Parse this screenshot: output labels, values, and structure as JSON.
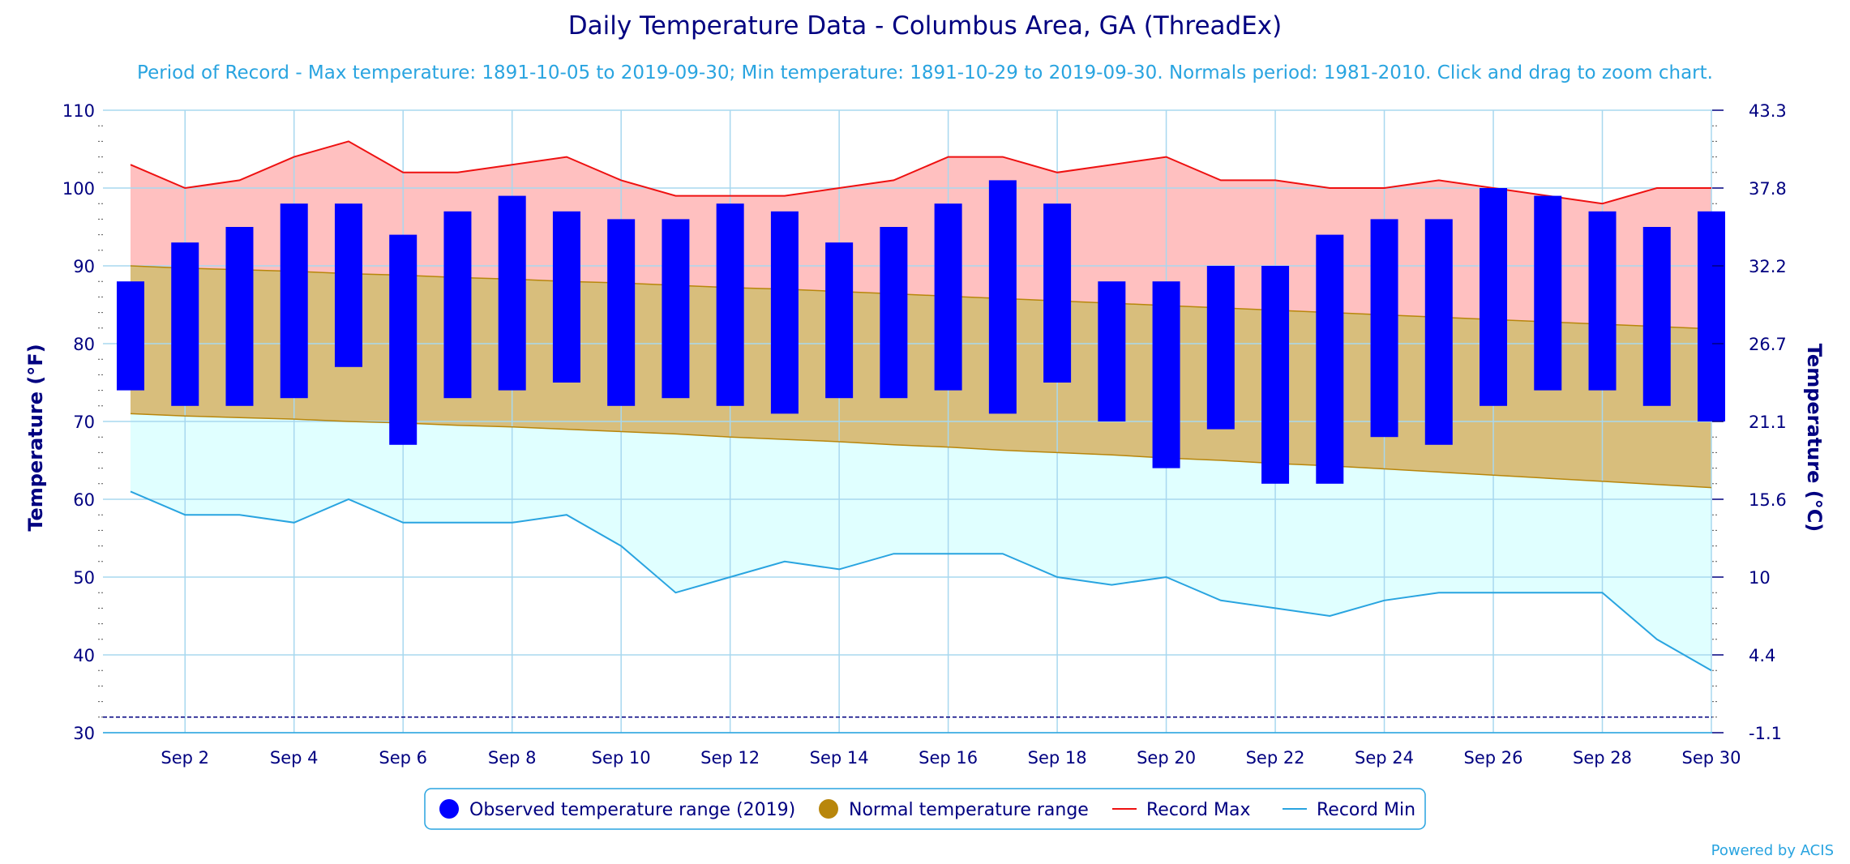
{
  "chart_data": {
    "type": "bar",
    "title": "Daily Temperature Data - Columbus Area, GA (ThreadEx)",
    "subtitle": "Period of Record - Max temperature: 1891-10-05 to 2019-09-30; Min temperature: 1891-10-29 to 2019-09-30. Normals period: 1981-2010. Click and drag to zoom chart.",
    "ylabel": "Temperature (°F)",
    "ylabel_right": "Temperature (°C)",
    "ylim": [
      30,
      110
    ],
    "yticks": [
      30,
      40,
      50,
      60,
      70,
      80,
      90,
      100,
      110
    ],
    "yticks_right": [
      "-1.1",
      "4.4",
      "10",
      "15.6",
      "21.1",
      "26.7",
      "32.2",
      "37.8",
      "43.3"
    ],
    "x": [
      1,
      2,
      3,
      4,
      5,
      6,
      7,
      8,
      9,
      10,
      11,
      12,
      13,
      14,
      15,
      16,
      17,
      18,
      19,
      20,
      21,
      22,
      23,
      24,
      25,
      26,
      27,
      28,
      29,
      30
    ],
    "xtick_days": [
      2,
      4,
      6,
      8,
      10,
      12,
      14,
      16,
      18,
      20,
      22,
      24,
      26,
      28,
      30
    ],
    "xtick_labels": [
      "Sep 2",
      "Sep 4",
      "Sep 6",
      "Sep 8",
      "Sep 10",
      "Sep 12",
      "Sep 14",
      "Sep 16",
      "Sep 18",
      "Sep 20",
      "Sep 22",
      "Sep 24",
      "Sep 26",
      "Sep 28",
      "Sep 30"
    ],
    "freeze_line": 32,
    "grid": true,
    "legend_position": "bottom-center",
    "colors": {
      "observed": "#0000ff",
      "normal_fill": "#d8be7c",
      "normal_line": "#b8860b",
      "normal_legend": "#b8860b",
      "record_max": "#ee1111",
      "record_max_fill": "#ffc0c0",
      "record_min": "#29a4e0",
      "record_min_fill": "#e0ffff",
      "freeze": "#000080",
      "grid": "#a8d8ef"
    },
    "series": [
      {
        "name": "Observed temperature range (2019)",
        "kind": "range_bar",
        "high": [
          88,
          93,
          95,
          98,
          98,
          94,
          97,
          99,
          97,
          96,
          96,
          98,
          97,
          93,
          95,
          98,
          101,
          98,
          88,
          88,
          90,
          90,
          94,
          96,
          96,
          100,
          99,
          97,
          95,
          97
        ],
        "low": [
          74,
          72,
          72,
          73,
          77,
          67,
          73,
          74,
          75,
          72,
          73,
          72,
          71,
          73,
          73,
          74,
          71,
          75,
          70,
          64,
          69,
          62,
          62,
          68,
          67,
          72,
          74,
          74,
          72,
          70
        ]
      },
      {
        "name": "Normal temperature range",
        "kind": "range_area",
        "high": [
          90.0,
          89.7,
          89.5,
          89.3,
          89.0,
          88.8,
          88.5,
          88.3,
          88.0,
          87.8,
          87.5,
          87.2,
          87.0,
          86.7,
          86.4,
          86.1,
          85.8,
          85.5,
          85.2,
          84.9,
          84.6,
          84.3,
          84.0,
          83.7,
          83.4,
          83.1,
          82.8,
          82.5,
          82.2,
          81.9
        ],
        "low": [
          71.0,
          70.7,
          70.5,
          70.3,
          70.0,
          69.8,
          69.5,
          69.3,
          69.0,
          68.7,
          68.4,
          68.0,
          67.7,
          67.4,
          67.0,
          66.7,
          66.3,
          66.0,
          65.7,
          65.3,
          65.0,
          64.6,
          64.3,
          63.9,
          63.5,
          63.1,
          62.7,
          62.3,
          61.9,
          61.5
        ]
      },
      {
        "name": "Record Max",
        "kind": "line",
        "values": [
          103,
          100,
          101,
          104,
          106,
          102,
          102,
          103,
          104,
          101,
          99,
          99,
          99,
          100,
          101,
          104,
          104,
          102,
          103,
          104,
          101,
          101,
          100,
          100,
          101,
          100,
          99,
          98,
          100,
          100
        ]
      },
      {
        "name": "Record Min",
        "kind": "line",
        "values": [
          61,
          58,
          58,
          57,
          60,
          57,
          57,
          57,
          58,
          54,
          48,
          50,
          52,
          51,
          53,
          53,
          53,
          50,
          49,
          50,
          47,
          46,
          45,
          47,
          48,
          48,
          48,
          48,
          42,
          38
        ]
      }
    ],
    "credit": "Powered by ACIS"
  }
}
